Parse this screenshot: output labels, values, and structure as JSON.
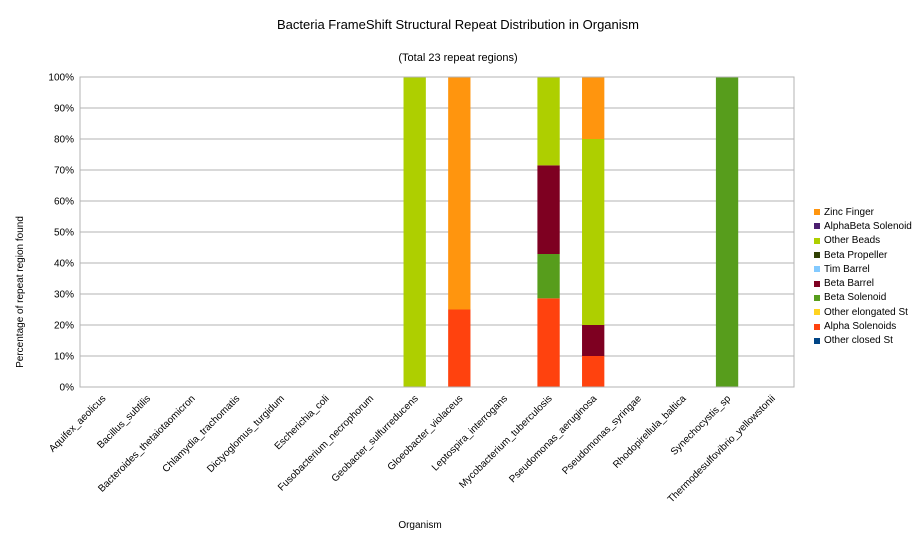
{
  "chart_data": {
    "type": "bar",
    "stacked": true,
    "percent": true,
    "title": "Bacteria FrameShift Structural Repeat Distribution in Organism",
    "subtitle": "(Total 23 repeat regions)",
    "xlabel": "Organism",
    "ylabel": "Percentage of repeat region found",
    "ylim": [
      0,
      100
    ],
    "yticks": [
      "0%",
      "10%",
      "20%",
      "30%",
      "40%",
      "50%",
      "60%",
      "70%",
      "80%",
      "90%",
      "100%"
    ],
    "grid": "horizontal",
    "legend_position": "right",
    "categories": [
      "Aquifex_aeolicus",
      "Bacillus_subtilis",
      "Bacteroides_thetaiotaomicron",
      "Chlamydia_trachomatis",
      "Dictyoglomus_turgidum",
      "Escherichia_coli",
      "Fusobacterium_necrophorum",
      "Geobacter_sulfurreducens",
      "Gloeobacter_violaceus",
      "Leptospira_interrogans",
      "Mycobacterium_tuberculosis",
      "Pseudomonas_aeruginosa",
      "Pseudomonas_syringae",
      "Rhodopirellula_baltica",
      "Synechocystis_sp",
      "Thermodesulfovibrio_yellowstonii"
    ],
    "series": [
      {
        "name": "Other closed St",
        "color": "#004586",
        "values": [
          0,
          0,
          0,
          0,
          0,
          0,
          0,
          0,
          0,
          0,
          0,
          0,
          0,
          0,
          0,
          0
        ]
      },
      {
        "name": "Alpha Solenoids",
        "color": "#ff420e",
        "values": [
          0,
          0,
          0,
          0,
          0,
          0,
          0,
          0,
          25,
          0,
          28.6,
          10,
          0,
          0,
          0,
          0
        ]
      },
      {
        "name": "Other elongated St",
        "color": "#ffd320",
        "values": [
          0,
          0,
          0,
          0,
          0,
          0,
          0,
          0,
          0,
          0,
          0,
          0,
          0,
          0,
          0,
          0
        ]
      },
      {
        "name": "Beta Solenoid",
        "color": "#579d1c",
        "values": [
          0,
          0,
          0,
          0,
          0,
          0,
          0,
          0,
          0,
          0,
          14.3,
          0,
          0,
          0,
          100,
          0
        ]
      },
      {
        "name": "Beta Barrel",
        "color": "#7e0021",
        "values": [
          0,
          0,
          0,
          0,
          0,
          0,
          0,
          0,
          0,
          0,
          28.6,
          10,
          0,
          0,
          0,
          0
        ]
      },
      {
        "name": "Tim Barrel",
        "color": "#83caff",
        "values": [
          0,
          0,
          0,
          0,
          0,
          0,
          0,
          0,
          0,
          0,
          0,
          0,
          0,
          0,
          0,
          0
        ]
      },
      {
        "name": "Beta Propeller",
        "color": "#314004",
        "values": [
          0,
          0,
          0,
          0,
          0,
          0,
          0,
          0,
          0,
          0,
          0,
          0,
          0,
          0,
          0,
          0
        ]
      },
      {
        "name": "Other Beads",
        "color": "#aecf00",
        "values": [
          0,
          0,
          0,
          0,
          0,
          0,
          0,
          100,
          0,
          0,
          28.5,
          60,
          0,
          0,
          0,
          0
        ]
      },
      {
        "name": "AlphaBeta Solenoid",
        "color": "#4b1f6f",
        "values": [
          0,
          0,
          0,
          0,
          0,
          0,
          0,
          0,
          0,
          0,
          0,
          0,
          0,
          0,
          0,
          0
        ]
      },
      {
        "name": "Zinc Finger",
        "color": "#ff950e",
        "values": [
          0,
          0,
          0,
          0,
          0,
          0,
          0,
          0,
          75,
          0,
          0,
          20,
          0,
          0,
          0,
          0
        ]
      }
    ],
    "legend_order": [
      "Zinc Finger",
      "AlphaBeta Solenoid",
      "Other Beads",
      "Beta Propeller",
      "Tim Barrel",
      "Beta Barrel",
      "Beta Solenoid",
      "Other elongated St",
      "Alpha Solenoids",
      "Other closed St"
    ]
  }
}
